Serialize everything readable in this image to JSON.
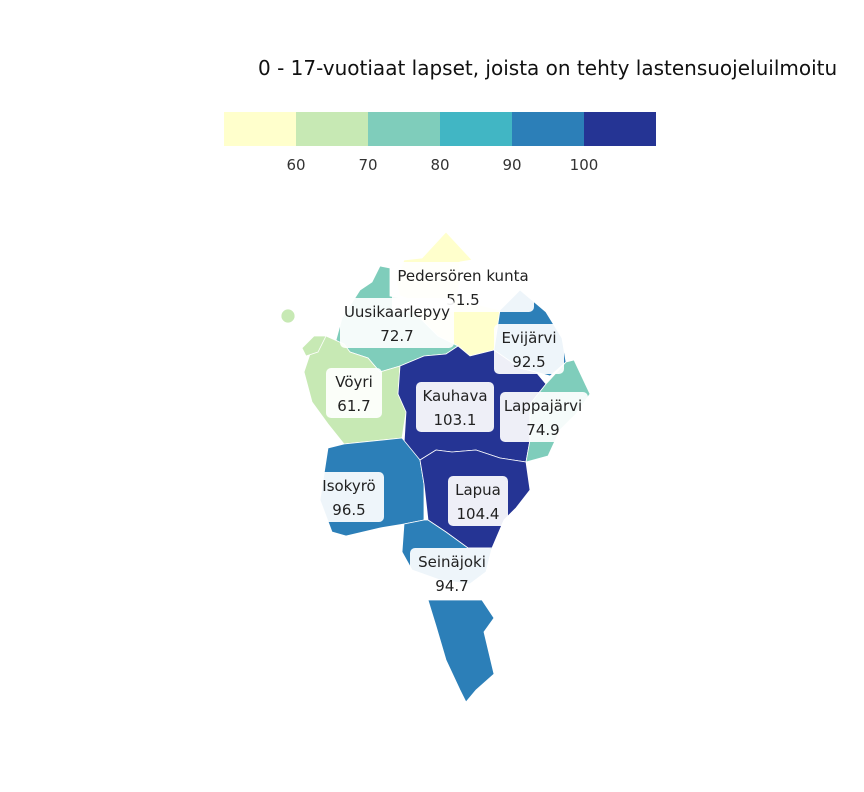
{
  "title": "0 - 17-vuotiaat lapset, joista on tehty lastensuojeluilmoitu",
  "legend": {
    "colors": [
      "#ffffcc",
      "#c7e9b4",
      "#7fcdbb",
      "#41b6c4",
      "#2c7fb8",
      "#253494"
    ],
    "ticks": [
      "60",
      "70",
      "80",
      "90",
      "100"
    ]
  },
  "regions": [
    {
      "name": "Pedersören kunta",
      "value": "51.5"
    },
    {
      "name": "Uusikaarlepyy",
      "value": "72.7"
    },
    {
      "name": "Evijärvi",
      "value": "92.5"
    },
    {
      "name": "Vöyri",
      "value": "61.7"
    },
    {
      "name": "Kauhava",
      "value": "103.1"
    },
    {
      "name": "Lappajärvi",
      "value": "74.9"
    },
    {
      "name": "Isokyrö",
      "value": "96.5"
    },
    {
      "name": "Lapua",
      "value": "104.4"
    },
    {
      "name": "Seinäjoki",
      "value": "94.7"
    }
  ]
}
